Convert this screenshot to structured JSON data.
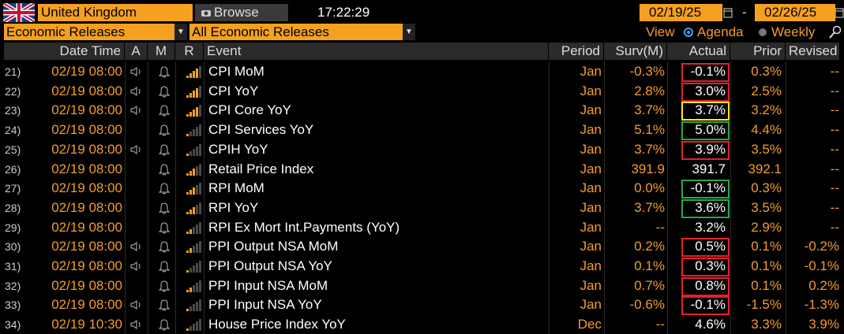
{
  "header": {
    "country": "United Kingdom",
    "browse": "Browse",
    "time": "17:22:29",
    "start_date": "02/19/25",
    "date_separator": "-",
    "end_date": "02/26/25",
    "category": "Economic Releases",
    "filter": "All Economic Releases",
    "view_label": "View",
    "view_options": [
      "Agenda",
      "Weekly"
    ]
  },
  "table": {
    "columns": [
      "Date Time",
      "A",
      "M",
      "R",
      "Event",
      "Period",
      "Surv(M)",
      "Actual",
      "Prior",
      "Revised"
    ],
    "rows": [
      {
        "index": "21)",
        "date_time": "02/19 08:00",
        "alert": true,
        "relevance": 4,
        "event": "CPI MoM",
        "period": "Jan",
        "survey": "-0.3%",
        "actual": "-0.1%",
        "prior": "0.3%",
        "revised": "--",
        "highlight": "#e3202b"
      },
      {
        "index": "22)",
        "date_time": "02/19 08:00",
        "alert": true,
        "relevance": 4,
        "event": "CPI YoY",
        "period": "Jan",
        "survey": "2.8%",
        "actual": "3.0%",
        "prior": "2.5%",
        "revised": "--",
        "highlight": "#e3202b"
      },
      {
        "index": "23)",
        "date_time": "02/19 08:00",
        "alert": true,
        "relevance": 4,
        "event": "CPI Core YoY",
        "period": "Jan",
        "survey": "3.7%",
        "actual": "3.7%",
        "prior": "3.2%",
        "revised": "--",
        "highlight": "#ffe81a"
      },
      {
        "index": "24)",
        "date_time": "02/19 08:00",
        "alert": false,
        "relevance": 1,
        "event": "CPI Services YoY",
        "period": "Jan",
        "survey": "5.1%",
        "actual": "5.0%",
        "prior": "4.4%",
        "revised": "--",
        "highlight": "#2aa84a"
      },
      {
        "index": "25)",
        "date_time": "02/19 08:00",
        "alert": true,
        "relevance": 1,
        "event": "CPIH YoY",
        "period": "Jan",
        "survey": "3.7%",
        "actual": "3.9%",
        "prior": "3.5%",
        "revised": "--",
        "highlight": "#e3202b"
      },
      {
        "index": "26)",
        "date_time": "02/19 08:00",
        "alert": false,
        "relevance": 3,
        "event": "Retail Price Index",
        "period": "Jan",
        "survey": "391.9",
        "actual": "391.7",
        "prior": "392.1",
        "revised": "--"
      },
      {
        "index": "27)",
        "date_time": "02/19 08:00",
        "alert": false,
        "relevance": 3,
        "event": "RPI MoM",
        "period": "Jan",
        "survey": "0.0%",
        "actual": "-0.1%",
        "prior": "0.3%",
        "revised": "--",
        "highlight": "#2aa84a"
      },
      {
        "index": "28)",
        "date_time": "02/19 08:00",
        "alert": false,
        "relevance": 3,
        "event": "RPI YoY",
        "period": "Jan",
        "survey": "3.7%",
        "actual": "3.6%",
        "prior": "3.5%",
        "revised": "--",
        "highlight": "#2aa84a"
      },
      {
        "index": "29)",
        "date_time": "02/19 08:00",
        "alert": false,
        "relevance": 2,
        "event": "RPI Ex Mort Int.Payments (YoY)",
        "period": "Jan",
        "survey": "--",
        "actual": "3.2%",
        "prior": "2.9%",
        "revised": "--"
      },
      {
        "index": "30)",
        "date_time": "02/19 08:00",
        "alert": true,
        "relevance": 2,
        "event": "PPI Output NSA MoM",
        "period": "Jan",
        "survey": "0.2%",
        "actual": "0.5%",
        "prior": "0.1%",
        "revised": "-0.2%",
        "highlight": "#e3202b"
      },
      {
        "index": "31)",
        "date_time": "02/19 08:00",
        "alert": true,
        "relevance": 1,
        "event": "PPI Output NSA YoY",
        "period": "Jan",
        "survey": "0.1%",
        "actual": "0.3%",
        "prior": "0.1%",
        "revised": "-0.1%",
        "highlight": "#e3202b"
      },
      {
        "index": "32)",
        "date_time": "02/19 08:00",
        "alert": false,
        "relevance": 2,
        "event": "PPI Input NSA MoM",
        "period": "Jan",
        "survey": "0.7%",
        "actual": "0.8%",
        "prior": "0.1%",
        "revised": "0.2%",
        "highlight": "#e3202b"
      },
      {
        "index": "33)",
        "date_time": "02/19 08:00",
        "alert": true,
        "relevance": 1,
        "event": "PPI Input NSA YoY",
        "period": "Jan",
        "survey": "-0.6%",
        "actual": "-0.1%",
        "prior": "-1.5%",
        "revised": "-1.3%",
        "highlight": "#e3202b"
      },
      {
        "index": "34)",
        "date_time": "02/19 10:30",
        "alert": true,
        "relevance": 1,
        "event": "House Price Index YoY",
        "period": "Dec",
        "survey": "--",
        "actual": "4.6%",
        "prior": "3.3%",
        "revised": "3.9%"
      }
    ]
  }
}
